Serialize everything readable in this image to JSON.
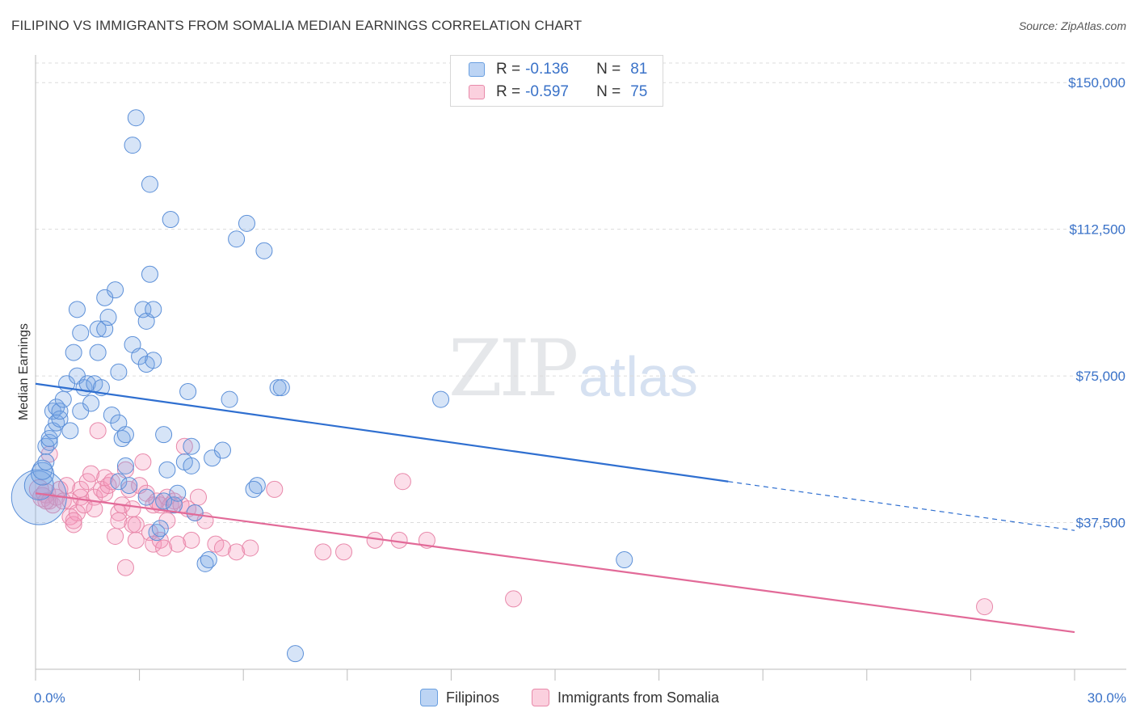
{
  "title": "FILIPINO VS IMMIGRANTS FROM SOMALIA MEDIAN EARNINGS CORRELATION CHART",
  "source": "Source: ZipAtlas.com",
  "watermark": {
    "zip": "ZIP",
    "atlas": "atlas"
  },
  "legend": {
    "r_label": "R =",
    "n_label": "N =",
    "rows": [
      {
        "r": "-0.136",
        "n": "81",
        "color": "#a8c8f0",
        "border": "#6a9fe0"
      },
      {
        "r": "-0.597",
        "n": "75",
        "color": "#f8c0d4",
        "border": "#e88aaa"
      }
    ]
  },
  "bottom_legend": [
    "Filipinos",
    "Immigrants from Somalia"
  ],
  "colors": {
    "blue_fill": "rgba(120,165,230,0.30)",
    "blue_stroke": "#5b8fd8",
    "blue_line": "#2f6fd0",
    "pink_fill": "rgba(245,150,185,0.30)",
    "pink_stroke": "#e888aa",
    "pink_line": "#e26a98",
    "axis_text": "#3a72c8",
    "grid": "#dcdcdc"
  },
  "chart_data": {
    "type": "scatter",
    "title": "FILIPINO VS IMMIGRANTS FROM SOMALIA MEDIAN EARNINGS CORRELATION CHART",
    "xlabel": "",
    "ylabel": "Median Earnings",
    "xlim": [
      0,
      30
    ],
    "ylim": [
      0,
      155000
    ],
    "x_tick_labels": [
      "0.0%",
      "30.0%"
    ],
    "y_ticks": [
      37500,
      75000,
      112500,
      150000
    ],
    "y_tick_labels": [
      "$37,500",
      "$75,000",
      "$112,500",
      "$150,000"
    ],
    "series": [
      {
        "name": "Filipinos",
        "r": -0.136,
        "n": 81,
        "trend": {
          "x0": 0,
          "y0": 73000,
          "x1": 20,
          "y1": 48000,
          "x_dash_end": 30,
          "y_dash_end": 35500
        },
        "points": [
          [
            0.1,
            44000,
            34
          ],
          [
            0.1,
            47000,
            18
          ],
          [
            0.2,
            50000,
            14
          ],
          [
            0.2,
            51000,
            12
          ],
          [
            0.3,
            57000,
            10
          ],
          [
            0.3,
            53000,
            10
          ],
          [
            0.4,
            58000,
            10
          ],
          [
            0.4,
            59000,
            10
          ],
          [
            0.5,
            61000,
            10
          ],
          [
            0.5,
            66000,
            10
          ],
          [
            0.6,
            67000,
            10
          ],
          [
            0.6,
            63000,
            10
          ],
          [
            0.7,
            64000,
            10
          ],
          [
            0.7,
            66000,
            10
          ],
          [
            0.8,
            69000,
            10
          ],
          [
            0.9,
            73000,
            10
          ],
          [
            1.0,
            61000,
            10
          ],
          [
            1.1,
            81000,
            10
          ],
          [
            1.2,
            75000,
            10
          ],
          [
            1.2,
            92000,
            10
          ],
          [
            1.3,
            66000,
            10
          ],
          [
            1.3,
            86000,
            10
          ],
          [
            1.4,
            72000,
            10
          ],
          [
            1.5,
            73000,
            10
          ],
          [
            1.6,
            68000,
            10
          ],
          [
            1.7,
            73000,
            10
          ],
          [
            1.8,
            87000,
            10
          ],
          [
            1.8,
            81000,
            10
          ],
          [
            1.9,
            72000,
            10
          ],
          [
            2.0,
            95000,
            10
          ],
          [
            2.0,
            87000,
            10
          ],
          [
            2.1,
            90000,
            10
          ],
          [
            2.2,
            65000,
            10
          ],
          [
            2.3,
            97000,
            10
          ],
          [
            2.4,
            48000,
            10
          ],
          [
            2.4,
            63000,
            10
          ],
          [
            2.4,
            76000,
            10
          ],
          [
            2.5,
            59000,
            10
          ],
          [
            2.6,
            60000,
            10
          ],
          [
            2.6,
            52000,
            10
          ],
          [
            2.7,
            47000,
            10
          ],
          [
            2.8,
            83000,
            10
          ],
          [
            2.8,
            134000,
            10
          ],
          [
            2.9,
            141000,
            10
          ],
          [
            3.0,
            80000,
            10
          ],
          [
            3.1,
            92000,
            10
          ],
          [
            3.2,
            78000,
            10
          ],
          [
            3.2,
            89000,
            10
          ],
          [
            3.2,
            44000,
            10
          ],
          [
            3.3,
            101000,
            10
          ],
          [
            3.3,
            124000,
            10
          ],
          [
            3.4,
            92000,
            10
          ],
          [
            3.4,
            79000,
            10
          ],
          [
            3.5,
            35000,
            10
          ],
          [
            3.6,
            36000,
            10
          ],
          [
            3.7,
            60000,
            10
          ],
          [
            3.7,
            43000,
            10
          ],
          [
            3.8,
            51000,
            10
          ],
          [
            3.9,
            115000,
            10
          ],
          [
            4.0,
            42000,
            10
          ],
          [
            4.1,
            45000,
            10
          ],
          [
            4.3,
            53000,
            10
          ],
          [
            4.4,
            71000,
            10
          ],
          [
            4.5,
            52000,
            10
          ],
          [
            4.5,
            57000,
            10
          ],
          [
            4.6,
            40000,
            10
          ],
          [
            4.9,
            27000,
            10
          ],
          [
            5.0,
            28000,
            10
          ],
          [
            5.1,
            54000,
            10
          ],
          [
            5.4,
            56000,
            10
          ],
          [
            5.6,
            69000,
            10
          ],
          [
            5.8,
            110000,
            10
          ],
          [
            6.1,
            114000,
            10
          ],
          [
            6.4,
            47000,
            10
          ],
          [
            6.6,
            107000,
            10
          ],
          [
            7.0,
            72000,
            10
          ],
          [
            7.1,
            72000,
            10
          ],
          [
            7.5,
            4000,
            10
          ],
          [
            11.7,
            69000,
            10
          ],
          [
            17.0,
            28000,
            10
          ],
          [
            6.3,
            46000,
            10
          ]
        ]
      },
      {
        "name": "Immigrants from Somalia",
        "r": -0.597,
        "n": 75,
        "trend": {
          "x0": 0,
          "y0": 45000,
          "x1": 30,
          "y1": 9500
        },
        "points": [
          [
            0.1,
            46000,
            12
          ],
          [
            0.2,
            44000,
            12
          ],
          [
            0.3,
            45000,
            12
          ],
          [
            0.4,
            43000,
            10
          ],
          [
            0.4,
            55000,
            10
          ],
          [
            0.5,
            42000,
            10
          ],
          [
            0.6,
            44000,
            10
          ],
          [
            0.7,
            46000,
            10
          ],
          [
            0.8,
            43000,
            10
          ],
          [
            0.9,
            47000,
            10
          ],
          [
            1.0,
            39000,
            10
          ],
          [
            1.0,
            43000,
            10
          ],
          [
            1.1,
            37000,
            10
          ],
          [
            1.2,
            40000,
            10
          ],
          [
            1.3,
            44000,
            10
          ],
          [
            1.3,
            46000,
            10
          ],
          [
            1.4,
            42000,
            10
          ],
          [
            1.5,
            48000,
            10
          ],
          [
            1.6,
            50000,
            10
          ],
          [
            1.7,
            44000,
            10
          ],
          [
            1.7,
            41000,
            10
          ],
          [
            1.8,
            61000,
            10
          ],
          [
            1.9,
            46000,
            10
          ],
          [
            2.0,
            49000,
            10
          ],
          [
            2.0,
            45000,
            10
          ],
          [
            2.1,
            47000,
            10
          ],
          [
            2.2,
            48000,
            10
          ],
          [
            2.3,
            34000,
            10
          ],
          [
            2.4,
            40000,
            10
          ],
          [
            2.4,
            38000,
            10
          ],
          [
            2.5,
            42000,
            10
          ],
          [
            2.6,
            51000,
            10
          ],
          [
            2.6,
            26000,
            10
          ],
          [
            2.7,
            46000,
            10
          ],
          [
            2.8,
            41000,
            10
          ],
          [
            2.8,
            37000,
            10
          ],
          [
            2.9,
            33000,
            10
          ],
          [
            3.0,
            47000,
            10
          ],
          [
            3.1,
            53000,
            10
          ],
          [
            3.2,
            45000,
            10
          ],
          [
            3.3,
            35000,
            10
          ],
          [
            3.4,
            42000,
            10
          ],
          [
            3.4,
            32000,
            10
          ],
          [
            3.5,
            43000,
            10
          ],
          [
            3.6,
            33000,
            10
          ],
          [
            3.6,
            42000,
            10
          ],
          [
            3.7,
            31000,
            10
          ],
          [
            3.8,
            38000,
            10
          ],
          [
            3.8,
            44000,
            10
          ],
          [
            3.9,
            42000,
            10
          ],
          [
            4.0,
            43000,
            10
          ],
          [
            4.1,
            32000,
            10
          ],
          [
            4.2,
            42000,
            10
          ],
          [
            4.3,
            57000,
            10
          ],
          [
            4.4,
            41000,
            10
          ],
          [
            4.5,
            33000,
            10
          ],
          [
            4.6,
            40000,
            10
          ],
          [
            4.7,
            44000,
            10
          ],
          [
            4.9,
            38000,
            10
          ],
          [
            5.2,
            32000,
            10
          ],
          [
            5.4,
            31000,
            10
          ],
          [
            5.8,
            30000,
            10
          ],
          [
            6.2,
            31000,
            10
          ],
          [
            6.9,
            46000,
            10
          ],
          [
            8.3,
            30000,
            10
          ],
          [
            8.9,
            30000,
            10
          ],
          [
            9.8,
            33000,
            10
          ],
          [
            10.5,
            33000,
            10
          ],
          [
            10.6,
            48000,
            10
          ],
          [
            11.3,
            33000,
            10
          ],
          [
            13.8,
            18000,
            10
          ],
          [
            27.4,
            16000,
            10
          ],
          [
            0.3,
            43000,
            10
          ],
          [
            1.1,
            38000,
            10
          ],
          [
            2.9,
            37000,
            10
          ]
        ]
      }
    ]
  }
}
